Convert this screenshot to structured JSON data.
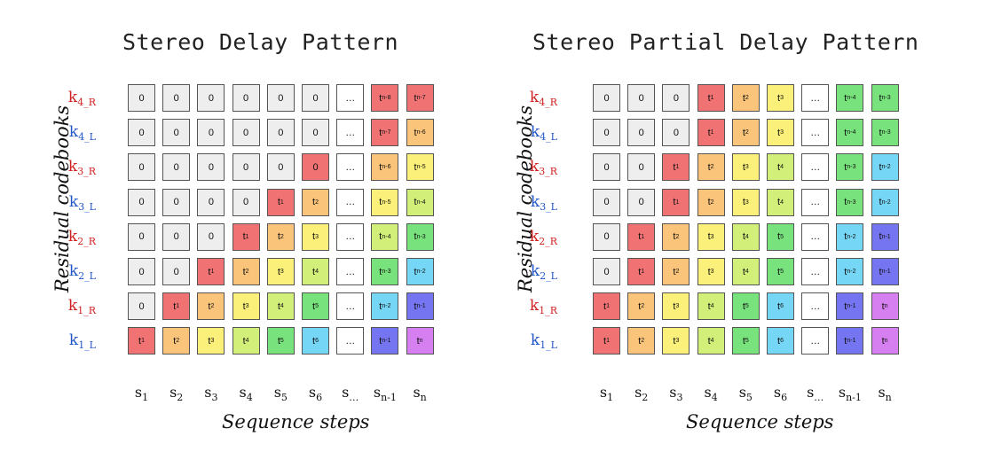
{
  "colors": {
    "zero": "#eeeeee",
    "ellipsis": "#ffffff",
    "t": [
      "#f07272",
      "#fac47a",
      "#fbf17a",
      "#d2ef7a",
      "#78e37d",
      "#75d6f6",
      "#7575f1",
      "#d67ff1"
    ],
    "label_R": "#d22020",
    "label_L": "#2156c7"
  },
  "axes": {
    "ylabel": "Residual codebooks",
    "xlabel": "Sequence steps"
  },
  "rows": [
    {
      "main": "k",
      "sub": "4_R",
      "side": "R"
    },
    {
      "main": "k",
      "sub": "4_L",
      "side": "L"
    },
    {
      "main": "k",
      "sub": "3_R",
      "side": "R"
    },
    {
      "main": "k",
      "sub": "3_L",
      "side": "L"
    },
    {
      "main": "k",
      "sub": "2_R",
      "side": "R"
    },
    {
      "main": "k",
      "sub": "2_L",
      "side": "L"
    },
    {
      "main": "k",
      "sub": "1_R",
      "side": "R"
    },
    {
      "main": "k",
      "sub": "1_L",
      "side": "L"
    }
  ],
  "columns": [
    {
      "main": "s",
      "sub": "1"
    },
    {
      "main": "s",
      "sub": "2"
    },
    {
      "main": "s",
      "sub": "3"
    },
    {
      "main": "s",
      "sub": "4"
    },
    {
      "main": "s",
      "sub": "5"
    },
    {
      "main": "s",
      "sub": "6"
    },
    {
      "main": "s",
      "sub": "…"
    },
    {
      "main": "s",
      "sub": "n-1"
    },
    {
      "main": "s",
      "sub": "n"
    }
  ],
  "panels": [
    {
      "title": "Stereo Delay Pattern",
      "grid": [
        [
          [
            "0",
            ""
          ],
          [
            "0",
            ""
          ],
          [
            "0",
            ""
          ],
          [
            "0",
            ""
          ],
          [
            "0",
            ""
          ],
          [
            "0",
            ""
          ],
          [
            "…",
            ""
          ],
          [
            "t",
            "n-8"
          ],
          [
            "t",
            "n-7"
          ]
        ],
        [
          [
            "0",
            ""
          ],
          [
            "0",
            ""
          ],
          [
            "0",
            ""
          ],
          [
            "0",
            ""
          ],
          [
            "0",
            ""
          ],
          [
            "0",
            ""
          ],
          [
            "…",
            ""
          ],
          [
            "t",
            "n-7"
          ],
          [
            "t",
            "n-6"
          ]
        ],
        [
          [
            "0",
            ""
          ],
          [
            "0",
            ""
          ],
          [
            "0",
            ""
          ],
          [
            "0",
            ""
          ],
          [
            "0",
            ""
          ],
          [
            "0",
            ""
          ],
          [
            "…",
            ""
          ],
          [
            "t",
            "n-6"
          ],
          [
            "t",
            "n-5"
          ]
        ],
        [
          [
            "0",
            ""
          ],
          [
            "0",
            ""
          ],
          [
            "0",
            ""
          ],
          [
            "0",
            ""
          ],
          [
            "t",
            "1"
          ],
          [
            "t",
            "2"
          ],
          [
            "…",
            ""
          ],
          [
            "t",
            "n-5"
          ],
          [
            "t",
            "n-4"
          ]
        ],
        [
          [
            "0",
            ""
          ],
          [
            "0",
            ""
          ],
          [
            "0",
            ""
          ],
          [
            "t",
            "1"
          ],
          [
            "t",
            "2"
          ],
          [
            "t",
            "3"
          ],
          [
            "…",
            ""
          ],
          [
            "t",
            "n-4"
          ],
          [
            "t",
            "n-3"
          ]
        ],
        [
          [
            "0",
            ""
          ],
          [
            "0",
            ""
          ],
          [
            "t",
            "1"
          ],
          [
            "t",
            "2"
          ],
          [
            "t",
            "3"
          ],
          [
            "t",
            "4"
          ],
          [
            "…",
            ""
          ],
          [
            "t",
            "n-3"
          ],
          [
            "t",
            "n-2"
          ]
        ],
        [
          [
            "0",
            ""
          ],
          [
            "t",
            "1"
          ],
          [
            "t",
            "2"
          ],
          [
            "t",
            "3"
          ],
          [
            "t",
            "4"
          ],
          [
            "t",
            "5"
          ],
          [
            "…",
            ""
          ],
          [
            "t",
            "n-2"
          ],
          [
            "t",
            "n-1"
          ]
        ],
        [
          [
            "t",
            "1"
          ],
          [
            "t",
            "2"
          ],
          [
            "t",
            "3"
          ],
          [
            "t",
            "4"
          ],
          [
            "t",
            "5"
          ],
          [
            "t",
            "6"
          ],
          [
            "…",
            ""
          ],
          [
            "t",
            "n-1"
          ],
          [
            "t",
            "n"
          ]
        ]
      ],
      "colorIdx": [
        [
          "z",
          "z",
          "z",
          "z",
          "z",
          "z",
          "e",
          0,
          0
        ],
        [
          "z",
          "z",
          "z",
          "z",
          "z",
          "z",
          "e",
          0,
          1
        ],
        [
          "z",
          "z",
          "z",
          "z",
          "z",
          0,
          "e",
          1,
          2
        ],
        [
          "z",
          "z",
          "z",
          "z",
          0,
          1,
          "e",
          2,
          3
        ],
        [
          "z",
          "z",
          "z",
          0,
          1,
          2,
          "e",
          3,
          4
        ],
        [
          "z",
          "z",
          0,
          1,
          2,
          3,
          "e",
          4,
          5
        ],
        [
          "z",
          0,
          1,
          2,
          3,
          4,
          "e",
          5,
          6
        ],
        [
          0,
          1,
          2,
          3,
          4,
          5,
          "e",
          6,
          7
        ]
      ]
    },
    {
      "title": "Stereo Partial Delay Pattern",
      "grid": [
        [
          [
            "0",
            ""
          ],
          [
            "0",
            ""
          ],
          [
            "0",
            ""
          ],
          [
            "t",
            "1"
          ],
          [
            "t",
            "2"
          ],
          [
            "t",
            "3"
          ],
          [
            "…",
            ""
          ],
          [
            "t",
            "n-4"
          ],
          [
            "t",
            "n-3"
          ]
        ],
        [
          [
            "0",
            ""
          ],
          [
            "0",
            ""
          ],
          [
            "0",
            ""
          ],
          [
            "t",
            "1"
          ],
          [
            "t",
            "2"
          ],
          [
            "t",
            "3"
          ],
          [
            "…",
            ""
          ],
          [
            "t",
            "n-4"
          ],
          [
            "t",
            "n-3"
          ]
        ],
        [
          [
            "0",
            ""
          ],
          [
            "0",
            ""
          ],
          [
            "t",
            "1"
          ],
          [
            "t",
            "2"
          ],
          [
            "t",
            "3"
          ],
          [
            "t",
            "4"
          ],
          [
            "…",
            ""
          ],
          [
            "t",
            "n-3"
          ],
          [
            "t",
            "n-2"
          ]
        ],
        [
          [
            "0",
            ""
          ],
          [
            "0",
            ""
          ],
          [
            "t",
            "1"
          ],
          [
            "t",
            "2"
          ],
          [
            "t",
            "3"
          ],
          [
            "t",
            "4"
          ],
          [
            "…",
            ""
          ],
          [
            "t",
            "n-3"
          ],
          [
            "t",
            "n-2"
          ]
        ],
        [
          [
            "0",
            ""
          ],
          [
            "t",
            "1"
          ],
          [
            "t",
            "2"
          ],
          [
            "t",
            "3"
          ],
          [
            "t",
            "4"
          ],
          [
            "t",
            "5"
          ],
          [
            "…",
            ""
          ],
          [
            "t",
            "n-2"
          ],
          [
            "t",
            "n-1"
          ]
        ],
        [
          [
            "0",
            ""
          ],
          [
            "t",
            "1"
          ],
          [
            "t",
            "2"
          ],
          [
            "t",
            "3"
          ],
          [
            "t",
            "4"
          ],
          [
            "t",
            "5"
          ],
          [
            "…",
            ""
          ],
          [
            "t",
            "n-2"
          ],
          [
            "t",
            "n-1"
          ]
        ],
        [
          [
            "t",
            "1"
          ],
          [
            "t",
            "2"
          ],
          [
            "t",
            "3"
          ],
          [
            "t",
            "4"
          ],
          [
            "t",
            "5"
          ],
          [
            "t",
            "6"
          ],
          [
            "…",
            ""
          ],
          [
            "t",
            "n-1"
          ],
          [
            "t",
            "n"
          ]
        ],
        [
          [
            "t",
            "1"
          ],
          [
            "t",
            "2"
          ],
          [
            "t",
            "3"
          ],
          [
            "t",
            "4"
          ],
          [
            "t",
            "5"
          ],
          [
            "t",
            "6"
          ],
          [
            "…",
            ""
          ],
          [
            "t",
            "n-1"
          ],
          [
            "t",
            "n"
          ]
        ]
      ],
      "colorIdx": [
        [
          "z",
          "z",
          "z",
          0,
          1,
          2,
          "e",
          4,
          4
        ],
        [
          "z",
          "z",
          "z",
          0,
          1,
          2,
          "e",
          4,
          4
        ],
        [
          "z",
          "z",
          0,
          1,
          2,
          3,
          "e",
          4,
          5
        ],
        [
          "z",
          "z",
          0,
          1,
          2,
          3,
          "e",
          4,
          5
        ],
        [
          "z",
          0,
          1,
          2,
          3,
          4,
          "e",
          5,
          6
        ],
        [
          "z",
          0,
          1,
          2,
          3,
          4,
          "e",
          5,
          6
        ],
        [
          0,
          1,
          2,
          3,
          4,
          5,
          "e",
          6,
          7
        ],
        [
          0,
          1,
          2,
          3,
          4,
          5,
          "e",
          6,
          7
        ]
      ]
    }
  ]
}
